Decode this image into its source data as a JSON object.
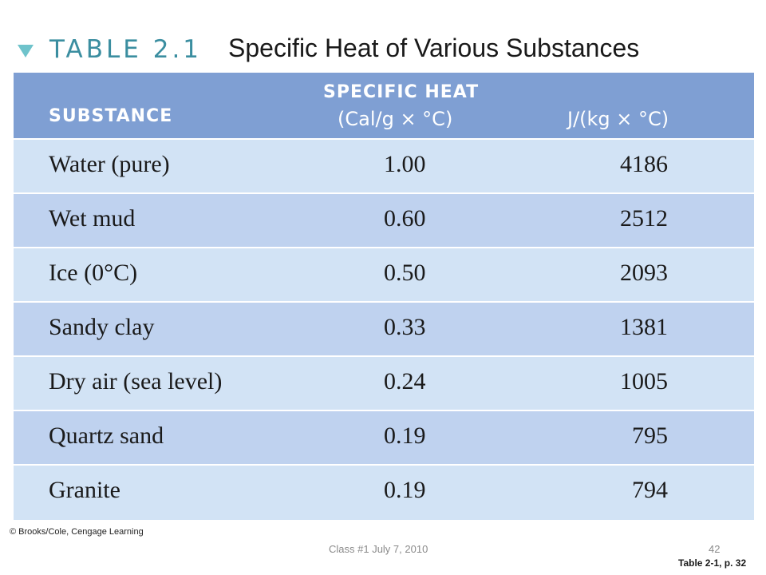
{
  "title": {
    "tag": "TABLE 2.1",
    "text": "Specific Heat of Various Substances",
    "icon": "triangle-bullet-icon",
    "accent_color": "#6fc3cb"
  },
  "table": {
    "header": {
      "substance": "SUBSTANCE",
      "specific_heat": "SPECIFIC HEAT",
      "unit_cal": "(Cal/g × °C)",
      "unit_joule": "J/(kg × °C)"
    },
    "header_color": "#7f9fd3",
    "row_color": "#d2e3f5",
    "row_alt_color": "#bfd2ef",
    "rows": [
      {
        "substance": "Water (pure)",
        "cal": "1.00",
        "joule": "4186"
      },
      {
        "substance": "Wet mud",
        "cal": "0.60",
        "joule": "2512"
      },
      {
        "substance": "Ice (0°C)",
        "cal": "0.50",
        "joule": "2093"
      },
      {
        "substance": "Sandy clay",
        "cal": "0.33",
        "joule": "1381"
      },
      {
        "substance": "Dry air (sea level)",
        "cal": "0.24",
        "joule": "1005"
      },
      {
        "substance": "Quartz sand",
        "cal": "0.19",
        "joule": "795"
      },
      {
        "substance": "Granite",
        "cal": "0.19",
        "joule": "794"
      }
    ]
  },
  "copyright": "© Brooks/Cole, Cengage Learning",
  "footer": {
    "text": "Class #1 July 7, 2010",
    "page_number": "42",
    "reference": "Table 2-1, p. 32"
  }
}
